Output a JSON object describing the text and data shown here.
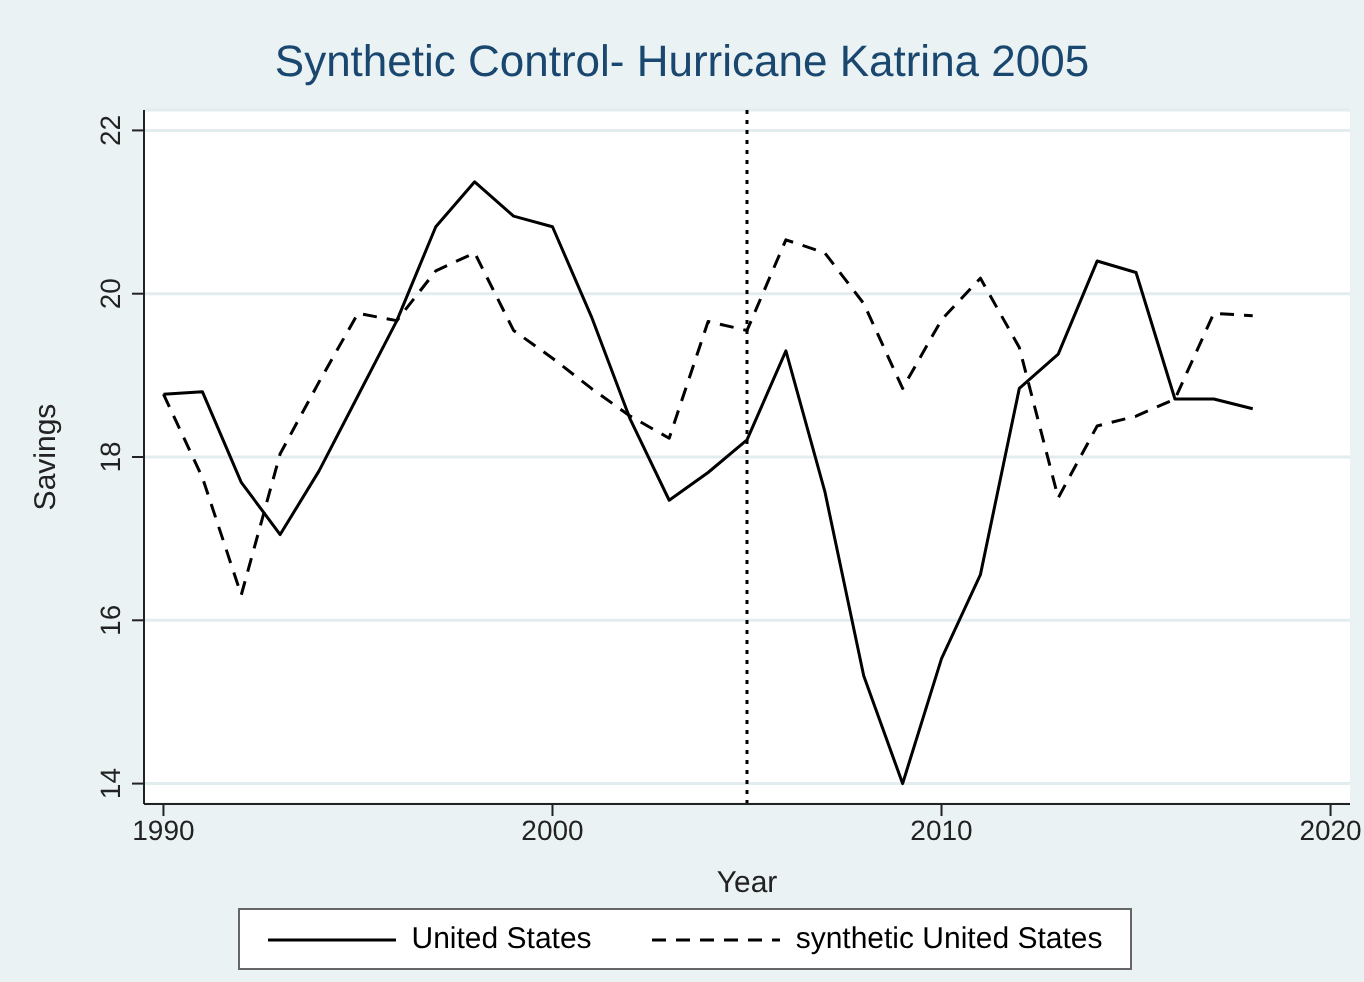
{
  "chart_data": {
    "type": "line",
    "title": "Synthetic Control- Hurricane Katrina 2005",
    "xlabel": "Year",
    "ylabel": "Savings",
    "x": [
      1990,
      1991,
      1992,
      1993,
      1994,
      1995,
      1996,
      1997,
      1998,
      1999,
      2000,
      2001,
      2002,
      2003,
      2004,
      2005,
      2006,
      2007,
      2008,
      2009,
      2010,
      2011,
      2012,
      2013,
      2014,
      2015,
      2016,
      2017,
      2018
    ],
    "series": [
      {
        "name": "United States",
        "color": "#000000",
        "line_style": "solid",
        "values": [
          18.77,
          18.8,
          17.69,
          17.05,
          17.83,
          18.75,
          19.67,
          20.82,
          21.37,
          20.95,
          20.82,
          19.72,
          18.46,
          17.47,
          17.81,
          18.21,
          19.3,
          17.58,
          15.32,
          14.0,
          15.53,
          16.56,
          18.84,
          19.26,
          20.4,
          20.26,
          18.71,
          18.71,
          18.59
        ]
      },
      {
        "name": "synthetic United States",
        "color": "#000000",
        "line_style": "dashed",
        "values": [
          18.77,
          17.75,
          16.31,
          18.04,
          18.92,
          19.76,
          19.67,
          20.28,
          20.5,
          19.55,
          19.21,
          18.84,
          18.5,
          18.23,
          19.66,
          19.55,
          20.66,
          20.5,
          19.88,
          18.84,
          19.68,
          20.19,
          19.34,
          17.5,
          18.38,
          18.5,
          18.71,
          19.76,
          19.73
        ]
      }
    ],
    "xlim": [
      1989.5,
      2020.5
    ],
    "xticks": [
      1990,
      2000,
      2010,
      2020
    ],
    "ylim": [
      13.75,
      22.25
    ],
    "yticks": [
      14,
      16,
      18,
      20,
      22
    ],
    "grid": "y",
    "legend": "bottom",
    "marker": "none",
    "ref_lines": [
      {
        "axis": "x",
        "value": 2005,
        "color": "#000000",
        "line_style": "dotted"
      }
    ]
  }
}
